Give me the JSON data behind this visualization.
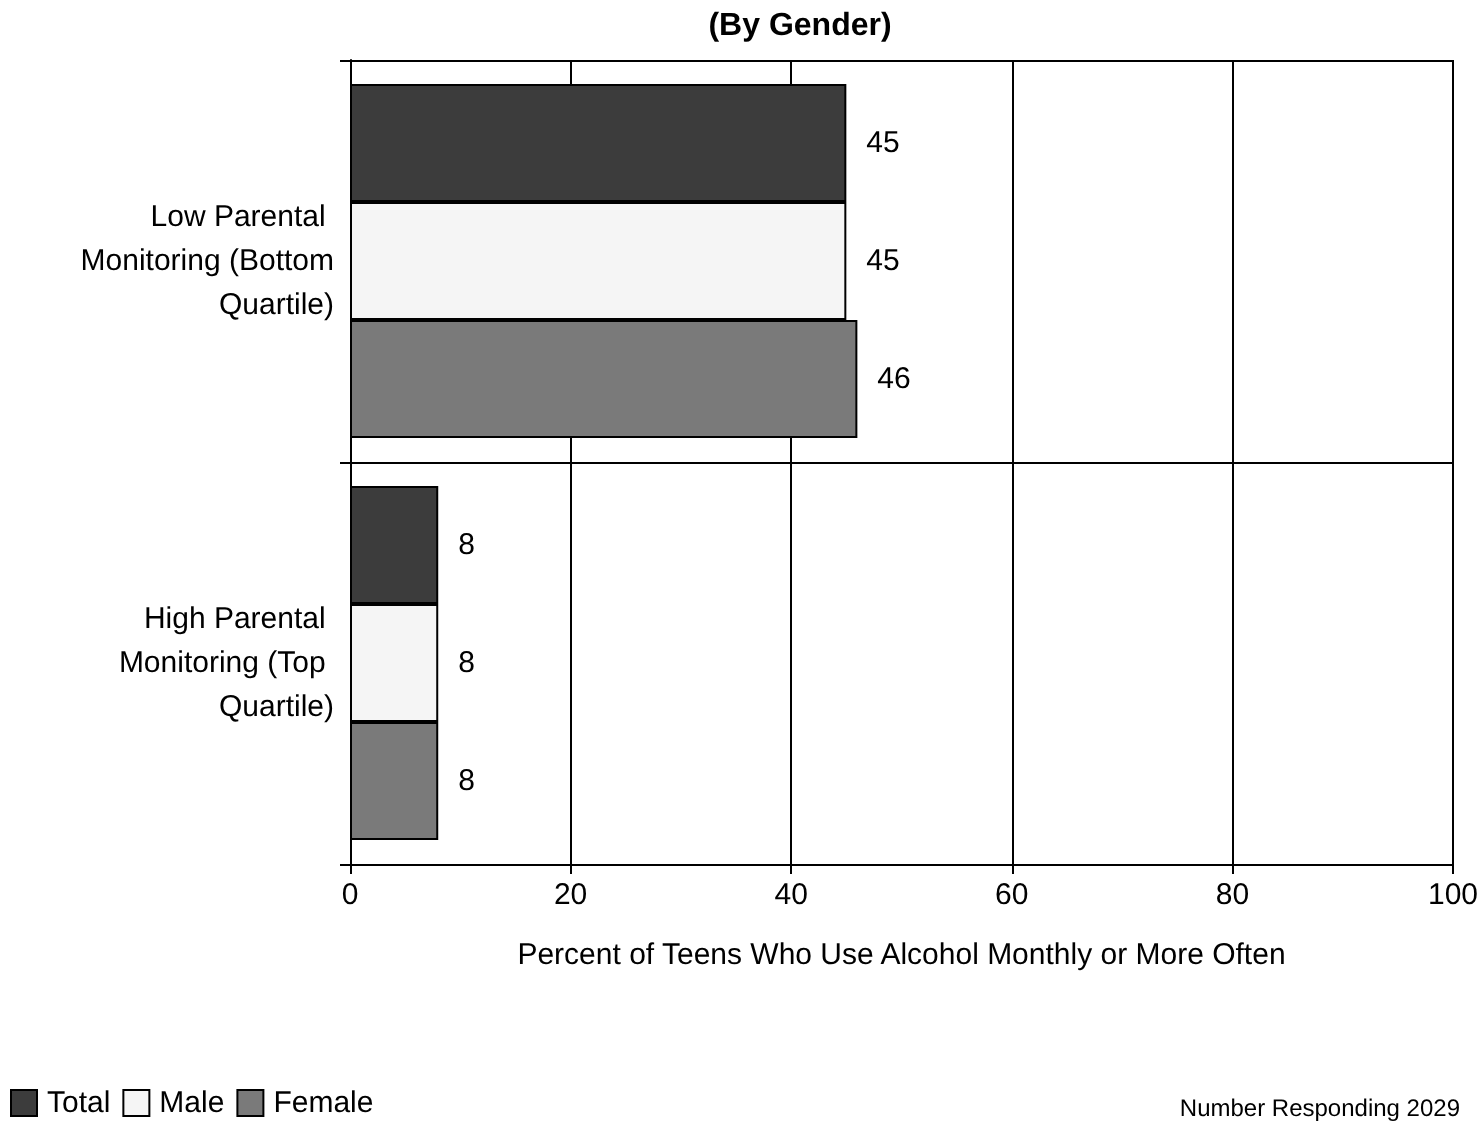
{
  "chart_data": {
    "type": "bar",
    "orientation": "horizontal",
    "title": "(By Gender)",
    "xlabel": "Percent of Teens Who Use Alcohol Monthly or More Often",
    "categories": [
      "Low Parental Monitoring (Bottom Quartile)",
      "High Parental Monitoring (Top Quartile)"
    ],
    "series": [
      {
        "name": "Total",
        "color": "#3c3c3c",
        "values": [
          45,
          8
        ]
      },
      {
        "name": "Male",
        "color": "#f5f5f5",
        "values": [
          45,
          8
        ]
      },
      {
        "name": "Female",
        "color": "#7a7a7a",
        "values": [
          46,
          8
        ]
      }
    ],
    "xlim": [
      0,
      100
    ],
    "xticks": [
      0,
      20,
      40,
      60,
      80,
      100
    ],
    "grid": true,
    "data_labels": true,
    "legend": "bottom left",
    "annotations": [
      "Number Responding 2029"
    ]
  }
}
